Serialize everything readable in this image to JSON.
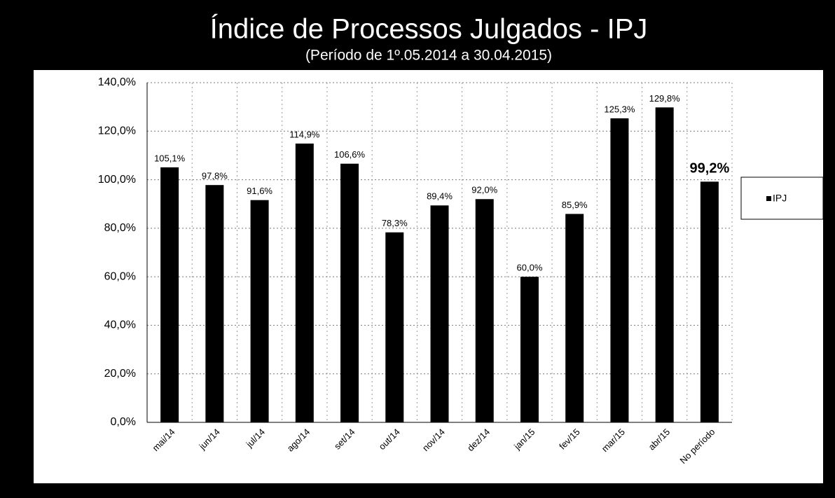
{
  "chart_data": {
    "type": "bar",
    "title": "Índice de Processos Julgados - IPJ",
    "subtitle": "(Período de 1º.05.2014 a 30.04.2015)",
    "categories": [
      "mai/14",
      "jun/14",
      "jul/14",
      "ago/14",
      "set/14",
      "out/14",
      "nov/14",
      "dez/14",
      "jan/15",
      "fev/15",
      "mar/15",
      "abr/15",
      "No período"
    ],
    "series": [
      {
        "name": "IPJ",
        "color": "#000000",
        "values": [
          105.1,
          97.8,
          91.6,
          114.9,
          106.6,
          78.3,
          89.4,
          92.0,
          60.0,
          85.9,
          125.3,
          129.8,
          99.2
        ],
        "value_labels": [
          "105,1%",
          "97,8%",
          "91,6%",
          "114,9%",
          "106,6%",
          "78,3%",
          "89,4%",
          "92,0%",
          "60,0%",
          "85,9%",
          "125,3%",
          "129,8%",
          "99,2%"
        ]
      }
    ],
    "ylim": [
      0,
      140
    ],
    "yticks": [
      {
        "value": 0,
        "label": "0,0%"
      },
      {
        "value": 20,
        "label": "20,0%"
      },
      {
        "value": 40,
        "label": "40,0%"
      },
      {
        "value": 60,
        "label": "60,0%"
      },
      {
        "value": 80,
        "label": "80,0%"
      },
      {
        "value": 100,
        "label": "100,0%"
      },
      {
        "value": 120,
        "label": "120,0%"
      },
      {
        "value": 140,
        "label": "140,0%"
      }
    ],
    "grid": true,
    "legend": "right"
  }
}
